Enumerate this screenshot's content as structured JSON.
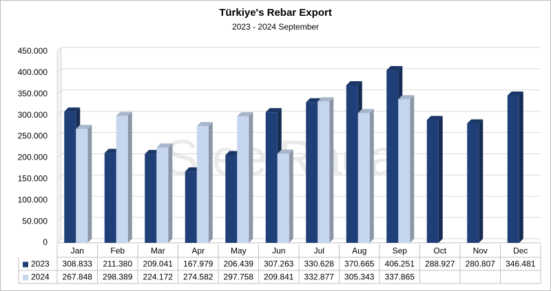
{
  "chart_data": {
    "type": "bar",
    "title": "Türkiye's Rebar Export",
    "subtitle": "2023 - 2024 September",
    "watermark": "SteelRadar",
    "categories": [
      "Jan",
      "Feb",
      "Mar",
      "Apr",
      "May",
      "Jun",
      "Jul",
      "Aug",
      "Sep",
      "Oct",
      "Nov",
      "Dec"
    ],
    "series": [
      {
        "name": "2023",
        "color": "#1f3f78",
        "values": [
          308833,
          211380,
          209041,
          167979,
          206439,
          307263,
          330628,
          370665,
          406251,
          288927,
          280807,
          346481
        ],
        "value_labels": [
          "308.833",
          "211.380",
          "209.041",
          "167.979",
          "206.439",
          "307.263",
          "330.628",
          "370.665",
          "406.251",
          "288.927",
          "280.807",
          "346.481"
        ]
      },
      {
        "name": "2024",
        "color": "#c6d6ef",
        "values": [
          267848,
          298389,
          224172,
          274582,
          297758,
          209841,
          332877,
          305343,
          337865,
          null,
          null,
          null
        ],
        "value_labels": [
          "267.848",
          "298.389",
          "224.172",
          "274.582",
          "297.758",
          "209.841",
          "332.877",
          "305.343",
          "337.865",
          null,
          null,
          null
        ]
      }
    ],
    "ylim": [
      0,
      450000
    ],
    "yticks": [
      {
        "value": 0,
        "label": "0"
      },
      {
        "value": 50000,
        "label": "50.000"
      },
      {
        "value": 100000,
        "label": "100.000"
      },
      {
        "value": 150000,
        "label": "150.000"
      },
      {
        "value": 200000,
        "label": "200.000"
      },
      {
        "value": 250000,
        "label": "250.000"
      },
      {
        "value": 300000,
        "label": "300.000"
      },
      {
        "value": 350000,
        "label": "350.000"
      },
      {
        "value": 400000,
        "label": "400.000"
      },
      {
        "value": 450000,
        "label": "450.000"
      }
    ],
    "grid": true
  }
}
